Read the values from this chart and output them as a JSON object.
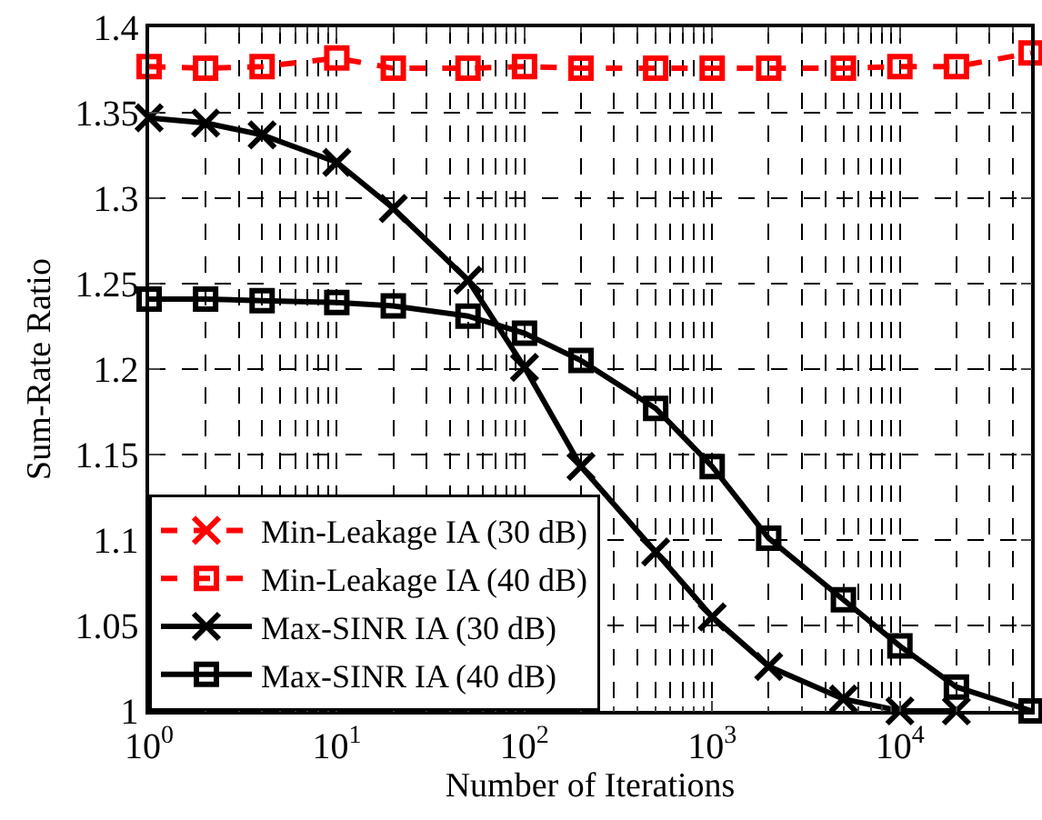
{
  "chart_data": {
    "type": "line",
    "xlabel": "Number of Iterations",
    "ylabel": "Sum-Rate Ratio",
    "x": [
      1,
      2,
      4,
      10,
      20,
      50,
      100,
      200,
      500,
      1000,
      2000,
      5000,
      10000,
      20000,
      50000
    ],
    "log": "x",
    "grid": true,
    "legend": "bottom left",
    "xlim": [
      1,
      50000
    ],
    "ylim": [
      1,
      1.4
    ],
    "xticks": [
      {
        "value": 1,
        "label": "10$^{0}$"
      },
      {
        "value": 10,
        "label": "10$^{1}$"
      },
      {
        "value": 100,
        "label": "10$^{2}$"
      },
      {
        "value": 1000,
        "label": "10$^{3}$"
      },
      {
        "value": 10000,
        "label": "10$^{4}$"
      }
    ],
    "yticks": [
      1,
      1.05,
      1.1,
      1.15,
      1.2,
      1.25,
      1.3,
      1.35,
      1.4
    ],
    "series": [
      {
        "name": "Min-Leakage IA (30 dB)",
        "color": "#ff0000",
        "marker": "cross",
        "line_style": "dashed",
        "values": [
          null,
          null,
          null,
          null,
          null,
          null,
          null,
          null,
          null,
          null,
          null,
          null,
          null,
          null,
          null
        ]
      },
      {
        "name": "Min-Leakage IA (40 dB)",
        "color": "#ff0000",
        "marker": "square",
        "line_style": "dashed",
        "values": [
          1.377,
          1.376,
          1.377,
          1.382,
          1.376,
          1.376,
          1.377,
          1.376,
          1.376,
          1.376,
          1.376,
          1.376,
          1.377,
          1.377,
          1.385
        ]
      },
      {
        "name": "Max-SINR IA (30 dB)",
        "color": "#000000",
        "marker": "cross",
        "line_style": "solid",
        "values": [
          1.347,
          1.344,
          1.337,
          1.321,
          1.294,
          1.252,
          1.201,
          1.143,
          1.093,
          1.055,
          1.026,
          1.007,
          1.0,
          1.0,
          null
        ]
      },
      {
        "name": "Max-SINR IA (40 dB)",
        "color": "#000000",
        "marker": "square",
        "line_style": "solid",
        "values": [
          1.241,
          1.241,
          1.24,
          1.239,
          1.237,
          1.231,
          1.221,
          1.205,
          1.177,
          1.143,
          1.101,
          1.065,
          1.038,
          1.014,
          1.0
        ]
      }
    ]
  }
}
